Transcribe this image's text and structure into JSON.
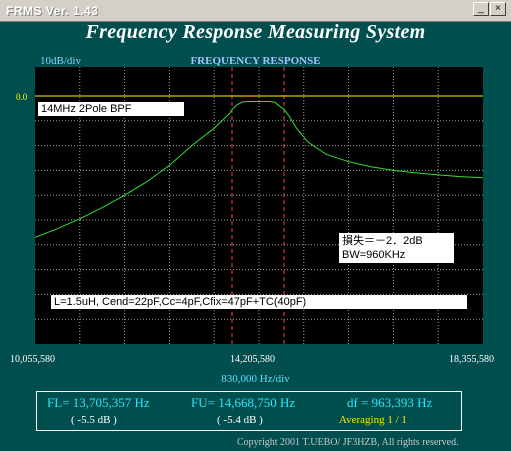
{
  "window": {
    "title": "FRMS  Ver. 1.43",
    "minimize_glyph": "_",
    "close_glyph": "×"
  },
  "header": {
    "app_title": "Frequency Response Measuring System",
    "scale_label": "10dB/div",
    "section_label": "FREQUENCY RESPONSE",
    "ref_level": "0.0"
  },
  "plot": {
    "device_label": "14MHz 2Pole BPF",
    "loss_label": "損失＝－2．2dB",
    "bw_label": "BW=960KHz",
    "circuit_label": "L=1.5uH, Cend=22pF,Cc=4pF,Cfix=47pF+TC(40pF)",
    "colors": {
      "background": "#000000",
      "grid": "#a0a0a0",
      "trace": "#33dd33",
      "reference": "#ffff00",
      "markers": "#ff4040"
    }
  },
  "axis": {
    "x_start": "10,055,580",
    "x_center": "14,205,580",
    "x_end": "18,355,580",
    "x_per_div": "830,000  Hz/div"
  },
  "readout": {
    "fl": "FL= 13,705,357  Hz",
    "fu": "FU= 14,668,750  Hz",
    "df": "df = 963,393  Hz",
    "fl_db": "( -5.5 dB )",
    "fu_db": "( -5.4 dB )",
    "averaging": "Averaging    1 / 1"
  },
  "footer": {
    "copyright": "Copyright 2001 T.UEBO/ JF3HZB, All rights reserved."
  },
  "chart_data": {
    "type": "line",
    "x_unit": "Hz",
    "y_unit": "dB",
    "xlim": [
      10055580,
      18355580
    ],
    "ylim": [
      -100,
      0
    ],
    "reference_level_db": 0.0,
    "markers_hz": [
      13705357,
      14668750
    ],
    "series": [
      {
        "x": [
          10055580,
          10470580,
          10885580,
          11300580,
          11715580,
          12130580,
          12545580,
          12960580,
          13375580,
          13520000,
          13660000,
          13705357,
          13800000,
          13900000,
          14000000,
          14205580,
          14400000,
          14500000,
          14600000,
          14668750,
          14760000,
          14900000,
          15110580,
          15450000,
          15865580,
          16280580,
          16695580,
          17110580,
          17525580,
          17940580,
          18355580
        ],
        "y": [
          -57,
          -53.5,
          -49.5,
          -45,
          -40,
          -34.5,
          -28,
          -20,
          -13,
          -10,
          -7,
          -5.5,
          -3.5,
          -2.4,
          -2.2,
          -2.2,
          -2.2,
          -2.6,
          -4.3,
          -5.4,
          -8,
          -13,
          -18.5,
          -23.5,
          -26.5,
          -28.5,
          -30,
          -31,
          -31.8,
          -32.5,
          -33
        ]
      }
    ]
  }
}
